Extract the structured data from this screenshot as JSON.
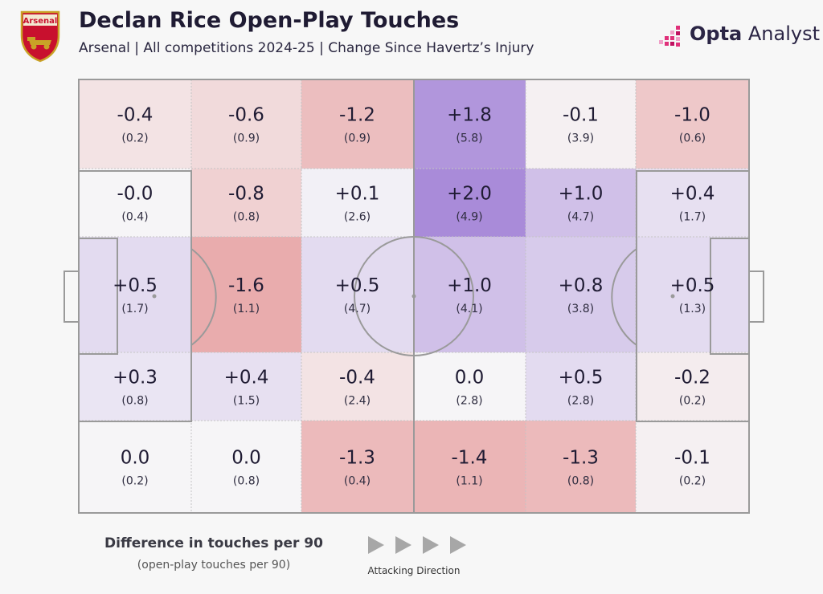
{
  "header": {
    "title": "Declan Rice Open-Play Touches",
    "subtitle": "Arsenal | All competitions 2024-25 | Change Since Havertz’s Injury",
    "crest_text": "Arsenal",
    "brand_strong": "Opta",
    "brand_light": " Analyst"
  },
  "legend": {
    "title": "Difference in touches per 90",
    "sub": "(open-play touches per 90)",
    "direction_label": "Attacking Direction"
  },
  "colors": {
    "negative": "#e69a9a",
    "positive": "#a98bd9",
    "neutral": "#f6f5f7",
    "lines": "#9a9a9a"
  },
  "chart_data": {
    "type": "heatmap",
    "title": "Declan Rice Open-Play Touches",
    "value_label": "Difference in touches per 90",
    "base_label": "open-play touches per 90",
    "direction": "left-to-right",
    "columns": 6,
    "rows": [
      {
        "values": [
          "-0.4",
          "-0.6",
          "-1.2",
          "+1.8",
          "-0.1",
          "-1.0"
        ],
        "bases": [
          "(0.2)",
          "(0.9)",
          "(0.9)",
          "(5.8)",
          "(3.9)",
          "(0.6)"
        ]
      },
      {
        "values": [
          "-0.0",
          "-0.8",
          "+0.1",
          "+2.0",
          "+1.0",
          "+0.4"
        ],
        "bases": [
          "(0.4)",
          "(0.8)",
          "(2.6)",
          "(4.9)",
          "(4.7)",
          "(1.7)"
        ]
      },
      {
        "values": [
          "+0.5",
          "-1.6",
          "+0.5",
          "+1.0",
          "+0.8",
          "+0.5"
        ],
        "bases": [
          "(1.7)",
          "(1.1)",
          "(4.7)",
          "(4.1)",
          "(3.8)",
          "(1.3)"
        ]
      },
      {
        "values": [
          "+0.3",
          "+0.4",
          "-0.4",
          "0.0",
          "+0.5",
          "-0.2"
        ],
        "bases": [
          "(0.8)",
          "(1.5)",
          "(2.4)",
          "(2.8)",
          "(2.8)",
          "(0.2)"
        ]
      },
      {
        "values": [
          "0.0",
          "0.0",
          "-1.3",
          "-1.4",
          "-1.3",
          "-0.1"
        ],
        "bases": [
          "(0.2)",
          "(0.8)",
          "(0.4)",
          "(1.1)",
          "(0.8)",
          "(0.2)"
        ]
      }
    ]
  }
}
